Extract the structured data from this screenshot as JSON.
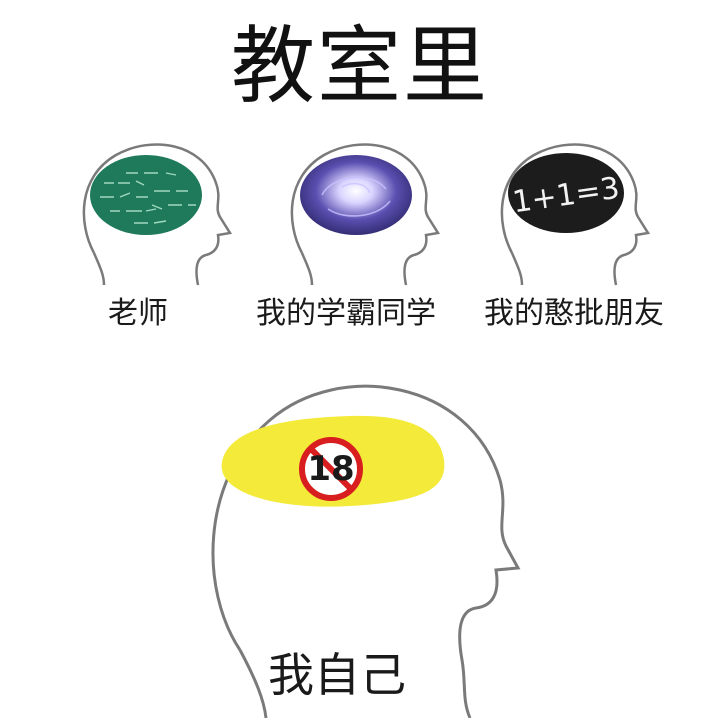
{
  "title": "教室里",
  "heads": [
    {
      "label": "老师",
      "brain": "equations-chalkboard-brain"
    },
    {
      "label": "我的学霸同学",
      "brain": "galaxy-brain"
    },
    {
      "label": "我的憨批朋友",
      "brain": "chalkboard-brain",
      "brain_text": "1+1=3"
    }
  ],
  "self": {
    "label": "我自己",
    "badge_text": "18",
    "badge_icon": "no-under-18-icon"
  },
  "colors": {
    "teacher_brain": "#1e7a5a",
    "galaxy_brain": "#4a3f9a",
    "chalk_brain": "#1c1c1c",
    "self_brain": "#f3ea3a",
    "badge_ring": "#d81e1e",
    "outline": "#7a7a7a"
  }
}
